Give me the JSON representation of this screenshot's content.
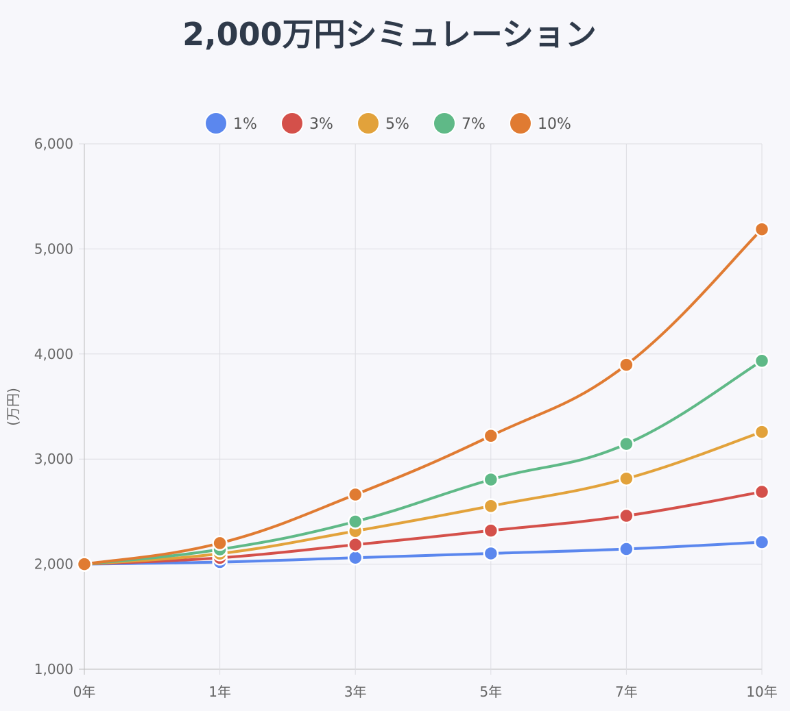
{
  "chart_data": {
    "type": "line",
    "title": "2,000万円シミュレーション",
    "xlabel": "",
    "ylabel": "(万円)",
    "categories": [
      "0年",
      "1年",
      "3年",
      "5年",
      "7年",
      "10年"
    ],
    "yticks": [
      "1,000",
      "2,000",
      "3,000",
      "4,000",
      "5,000",
      "6,000"
    ],
    "ylim": [
      1000,
      6000
    ],
    "grid": true,
    "legend_position": "top",
    "series": [
      {
        "name": "1%",
        "color": "#5b87ee",
        "values": [
          2000,
          2020,
          2061,
          2102,
          2144,
          2209
        ]
      },
      {
        "name": "3%",
        "color": "#d4504a",
        "values": [
          2000,
          2060,
          2185,
          2319,
          2460,
          2688
        ]
      },
      {
        "name": "5%",
        "color": "#e2a23b",
        "values": [
          2000,
          2100,
          2315,
          2553,
          2814,
          3258
        ]
      },
      {
        "name": "7%",
        "color": "#5fb987",
        "values": [
          2000,
          2140,
          2405,
          2805,
          3144,
          3935
        ]
      },
      {
        "name": "10%",
        "color": "#e07b32",
        "values": [
          2000,
          2200,
          2662,
          3221,
          3897,
          5187
        ]
      }
    ]
  }
}
